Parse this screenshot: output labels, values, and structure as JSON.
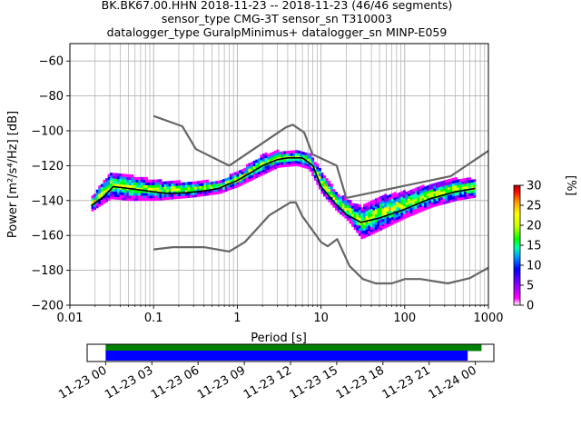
{
  "chart_data": {
    "type": "heatmap",
    "title_lines": [
      "BK.BK67.00.HHN   2018-11-23 -- 2018-11-23  (46/46 segments)",
      "sensor_type CMG-3T sensor_sn T310003",
      "datalogger_type GuralpMinimus+ datalogger_sn MINP-E059"
    ],
    "xlabel": "Period [s]",
    "ylabel": "Power [m²/s⁴/Hz] [dB]",
    "x_scale": "log",
    "xlim": [
      0.01,
      1000
    ],
    "ylim": [
      -200,
      -50
    ],
    "x_ticks": [
      0.01,
      0.1,
      1,
      10,
      100,
      1000
    ],
    "x_tick_labels": [
      "0.01",
      "0.1",
      "1",
      "10",
      "100",
      "1000"
    ],
    "y_ticks": [
      -200,
      -180,
      -160,
      -140,
      -120,
      -100,
      -80,
      -60
    ],
    "y_tick_labels": [
      "−200",
      "−180",
      "−160",
      "−140",
      "−120",
      "−100",
      "−80",
      "−60"
    ],
    "grid": true,
    "colorbar": {
      "label": "[%]",
      "range": [
        0,
        30
      ],
      "ticks": [
        0,
        5,
        10,
        15,
        20,
        25,
        30
      ],
      "tick_labels": [
        "0",
        "5",
        "10",
        "15",
        "20",
        "25",
        "30"
      ],
      "colors": [
        "#ffffff",
        "#ff00ff",
        "#8000ff",
        "#0000ff",
        "#0096ff",
        "#00ffaa",
        "#00ff00",
        "#ccff00",
        "#ffff00",
        "#ff9900",
        "#ff0000",
        "#aa0000"
      ]
    },
    "series": [
      {
        "role": "noise-model-high",
        "color": "#666666",
        "points": [
          [
            0.1,
            -91.5
          ],
          [
            0.22,
            -97.4
          ],
          [
            0.32,
            -110.5
          ],
          [
            0.8,
            -120
          ],
          [
            3.8,
            -98
          ],
          [
            4.6,
            -96.5
          ],
          [
            6.3,
            -101
          ],
          [
            7.9,
            -113.5
          ],
          [
            15.4,
            -120
          ],
          [
            20,
            -138.5
          ],
          [
            354.8,
            -126
          ],
          [
            1000,
            -111.5
          ]
        ]
      },
      {
        "role": "noise-model-low",
        "color": "#666666",
        "points": [
          [
            0.1,
            -168
          ],
          [
            0.17,
            -166.7
          ],
          [
            0.4,
            -166.7
          ],
          [
            0.8,
            -169.2
          ],
          [
            1.24,
            -163.7
          ],
          [
            2.4,
            -148.5
          ],
          [
            4.3,
            -141.1
          ],
          [
            5,
            -141.1
          ],
          [
            6,
            -149
          ],
          [
            10,
            -163.8
          ],
          [
            12,
            -166.2
          ],
          [
            15.6,
            -162.1
          ],
          [
            21.9,
            -177.5
          ],
          [
            31.6,
            -185
          ],
          [
            45,
            -187.5
          ],
          [
            70,
            -187.5
          ],
          [
            101,
            -185
          ],
          [
            154,
            -185
          ],
          [
            328,
            -187.5
          ],
          [
            600,
            -184.5
          ],
          [
            1000,
            -178.5
          ]
        ]
      },
      {
        "role": "mean-psd",
        "color": "#000000",
        "points": [
          [
            0.018,
            -143
          ],
          [
            0.025,
            -138
          ],
          [
            0.033,
            -132
          ],
          [
            0.05,
            -133
          ],
          [
            0.1,
            -135
          ],
          [
            0.15,
            -136
          ],
          [
            0.25,
            -135.5
          ],
          [
            0.4,
            -134.5
          ],
          [
            0.6,
            -133
          ],
          [
            1,
            -128.5
          ],
          [
            2,
            -120
          ],
          [
            3,
            -116.5
          ],
          [
            4,
            -115.5
          ],
          [
            6,
            -115.5
          ],
          [
            8,
            -120
          ],
          [
            10,
            -132
          ],
          [
            15,
            -142
          ],
          [
            20,
            -148
          ],
          [
            30,
            -152.5
          ],
          [
            50,
            -150
          ],
          [
            100,
            -145
          ],
          [
            200,
            -139
          ],
          [
            400,
            -135
          ],
          [
            700,
            -133
          ]
        ]
      }
    ],
    "probability_density_band": [
      [
        0.018,
        -146,
        -138
      ],
      [
        0.03,
        -139,
        -124
      ],
      [
        0.05,
        -140,
        -126
      ],
      [
        0.1,
        -140,
        -129
      ],
      [
        0.3,
        -138,
        -130
      ],
      [
        0.6,
        -136,
        -129
      ],
      [
        1,
        -132,
        -124
      ],
      [
        2,
        -125,
        -114
      ],
      [
        3,
        -121,
        -112
      ],
      [
        5,
        -120,
        -112
      ],
      [
        7,
        -122,
        -113
      ],
      [
        10,
        -136,
        -124
      ],
      [
        15,
        -146,
        -136
      ],
      [
        20,
        -151,
        -140
      ],
      [
        30,
        -162,
        -144
      ],
      [
        50,
        -157,
        -138
      ],
      [
        100,
        -150,
        -135
      ],
      [
        200,
        -144,
        -131
      ],
      [
        400,
        -140,
        -128
      ],
      [
        700,
        -138,
        -128
      ]
    ],
    "timeline": {
      "tick_labels": [
        "11-23 00",
        "11-23 03",
        "11-23 06",
        "11-23 09",
        "11-23 12",
        "11-23 15",
        "11-23 18",
        "11-23 21",
        "11-24 00"
      ],
      "tick_hours": [
        0,
        3,
        6,
        9,
        12,
        15,
        18,
        21,
        24
      ],
      "view_hours": [
        -1.2,
        25.2
      ],
      "bars": [
        {
          "color": "#008000",
          "start_hour": 0,
          "end_hour": 24.4
        },
        {
          "color": "#0000ff",
          "start_hour": 0,
          "end_hour": 23.5
        }
      ]
    }
  }
}
